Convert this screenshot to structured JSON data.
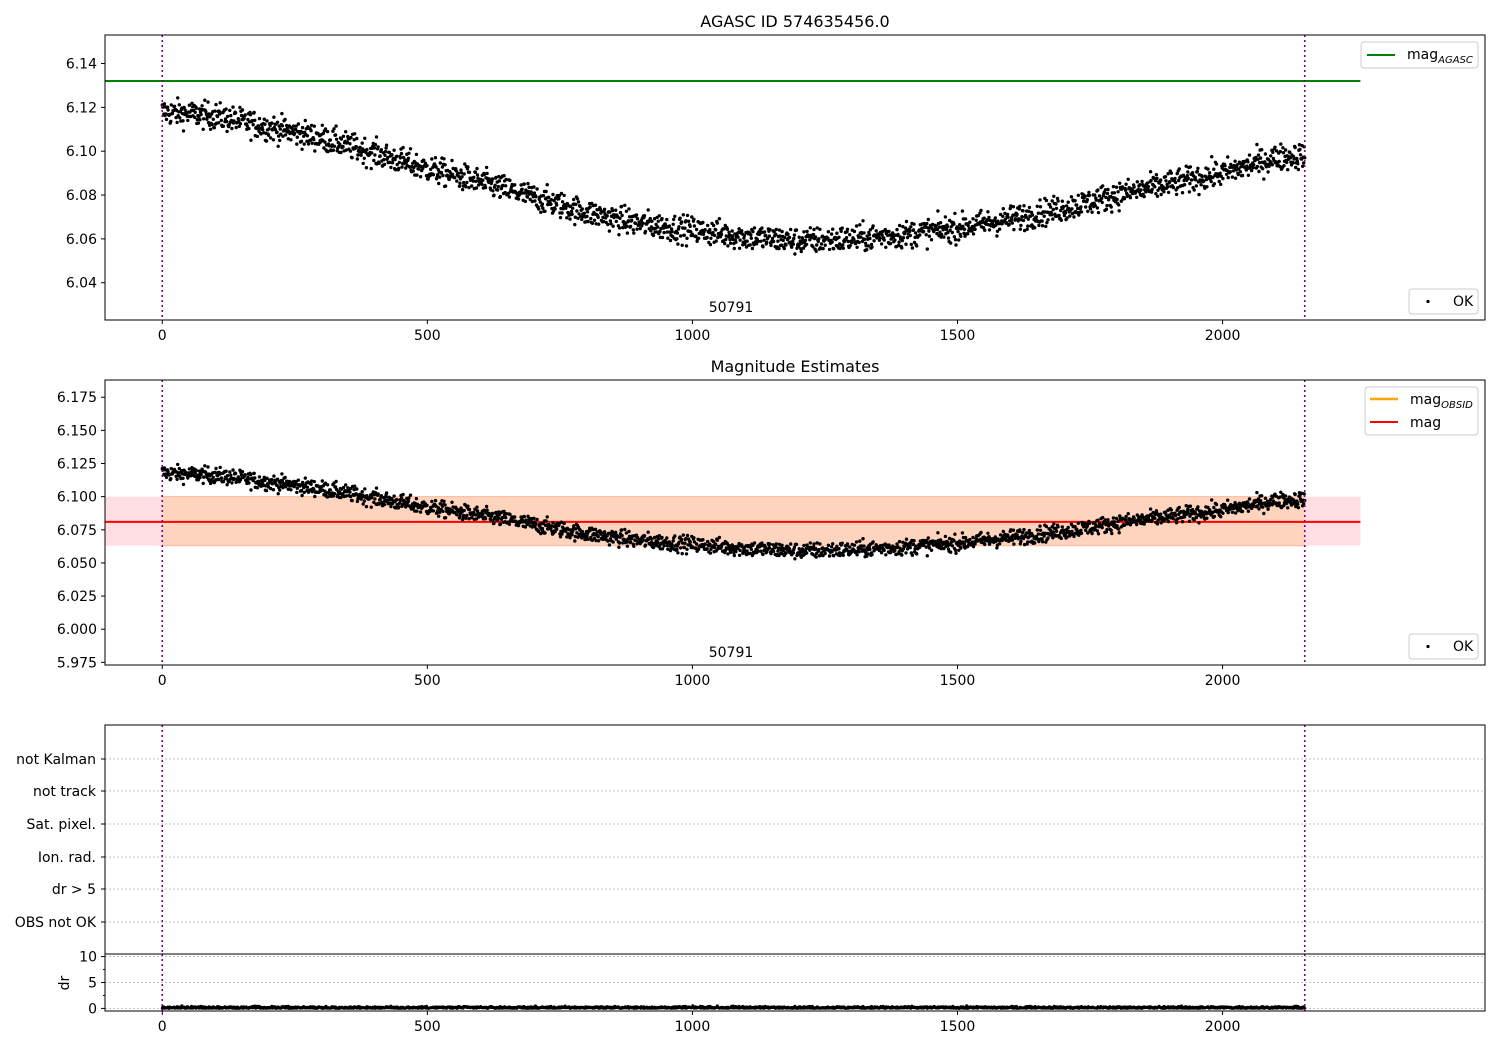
{
  "chart_data": [
    {
      "type": "scatter",
      "title": "AGASC ID 574635456.0",
      "xlim": [
        -108,
        2495
      ],
      "ylim": [
        6.023,
        6.153
      ],
      "xticks": [
        0,
        500,
        1000,
        1500,
        2000
      ],
      "yticks": [
        6.04,
        6.06,
        6.08,
        6.1,
        6.12,
        6.14
      ],
      "ytick_labels": [
        "6.04",
        "6.06",
        "6.08",
        "6.10",
        "6.12",
        "6.14"
      ],
      "obsid_annotation": "50791",
      "vlines": [
        0,
        2155
      ],
      "series": [
        {
          "name": "OK",
          "kind": "points",
          "color": "#000000",
          "trend": {
            "x": [
              0,
              100,
              200,
              300,
              400,
              500,
              600,
              700,
              800,
              900,
              1000,
              1100,
              1200,
              1300,
              1400,
              1500,
              1600,
              1700,
              1800,
              1900,
              2000,
              2100,
              2155
            ],
            "y": [
              6.118,
              6.116,
              6.111,
              6.106,
              6.099,
              6.092,
              6.086,
              6.079,
              6.072,
              6.067,
              6.064,
              6.061,
              6.059,
              6.06,
              6.062,
              6.065,
              6.069,
              6.074,
              6.08,
              6.085,
              6.09,
              6.097,
              6.098
            ]
          },
          "x_range": [
            0,
            2155
          ],
          "n_points": 2150,
          "scatter": 0.003
        },
        {
          "name": "mag_AGASC",
          "kind": "hline",
          "y": 6.132,
          "x_range": [
            -108,
            2260
          ],
          "color": "#008000"
        }
      ],
      "legend": [
        {
          "label": "mag",
          "sub": "AGASC",
          "position": "top-right",
          "color": "#008000",
          "marker": "line"
        },
        {
          "label": "OK",
          "position": "bottom-right",
          "color": "#000000",
          "marker": "dot"
        }
      ]
    },
    {
      "type": "scatter",
      "title": "Magnitude Estimates",
      "xlim": [
        -108,
        2495
      ],
      "ylim": [
        5.973,
        6.188
      ],
      "xticks": [
        0,
        500,
        1000,
        1500,
        2000
      ],
      "yticks": [
        5.975,
        6.0,
        6.025,
        6.05,
        6.075,
        6.1,
        6.125,
        6.15,
        6.175
      ],
      "ytick_labels": [
        "5.975",
        "6.000",
        "6.025",
        "6.050",
        "6.075",
        "6.100",
        "6.125",
        "6.150",
        "6.175"
      ],
      "obsid_annotation": "50791",
      "vlines": [
        0,
        2155
      ],
      "bands": [
        {
          "ymin": 6.063,
          "ymax": 6.1,
          "x_range": [
            -108,
            2260
          ],
          "color": "#ffdde3"
        },
        {
          "ymin": 6.063,
          "ymax": 6.1,
          "x_range": [
            0,
            2155
          ],
          "color": "#ffd4bf"
        }
      ],
      "series": [
        {
          "name": "OK",
          "kind": "points",
          "color": "#000000",
          "trend": {
            "x": [
              0,
              100,
              200,
              300,
              400,
              500,
              600,
              700,
              800,
              900,
              1000,
              1100,
              1200,
              1300,
              1400,
              1500,
              1600,
              1700,
              1800,
              1900,
              2000,
              2100,
              2155
            ],
            "y": [
              6.118,
              6.116,
              6.111,
              6.106,
              6.099,
              6.092,
              6.086,
              6.079,
              6.072,
              6.067,
              6.064,
              6.061,
              6.059,
              6.06,
              6.062,
              6.065,
              6.069,
              6.074,
              6.08,
              6.085,
              6.09,
              6.097,
              6.098
            ]
          },
          "x_range": [
            0,
            2155
          ],
          "n_points": 2150,
          "scatter": 0.003
        },
        {
          "name": "mag",
          "kind": "hline",
          "y": 6.081,
          "x_range": [
            -108,
            2260
          ],
          "color": "#ff0000"
        }
      ],
      "legend": [
        {
          "label": "mag",
          "sub": "OBSID",
          "position": "top-right",
          "color": "#ffa500",
          "marker": "line"
        },
        {
          "label": "mag",
          "position": "top-right",
          "color": "#ff0000",
          "marker": "line"
        },
        {
          "label": "OK",
          "position": "bottom-right",
          "color": "#000000",
          "marker": "dot"
        }
      ]
    },
    {
      "type": "scatter",
      "title": "",
      "xlim": [
        -108,
        2495
      ],
      "categories": [
        "not Kalman",
        "not track",
        "Sat. pixel.",
        "Ion. rad.",
        "dr > 5",
        "OBS not OK"
      ],
      "grid": true,
      "vlines": [
        0,
        2155
      ],
      "series": []
    },
    {
      "type": "line",
      "title": "",
      "ylabel": "dr",
      "xlim": [
        -108,
        2495
      ],
      "ylim": [
        -0.5,
        10.5
      ],
      "xticks": [
        0,
        500,
        1000,
        1500,
        2000
      ],
      "yticks": [
        0,
        5,
        10
      ],
      "ytick_labels": [
        "0",
        "5",
        "10"
      ],
      "grid": true,
      "vlines": [
        0,
        2155
      ],
      "series": [
        {
          "name": "dr",
          "kind": "points",
          "color": "#000000",
          "trend": {
            "x": [
              0,
              2155
            ],
            "y": [
              0.15,
              0.15
            ]
          },
          "x_range": [
            0,
            2155
          ],
          "n_points": 2150,
          "scatter": 0.12
        }
      ]
    }
  ]
}
